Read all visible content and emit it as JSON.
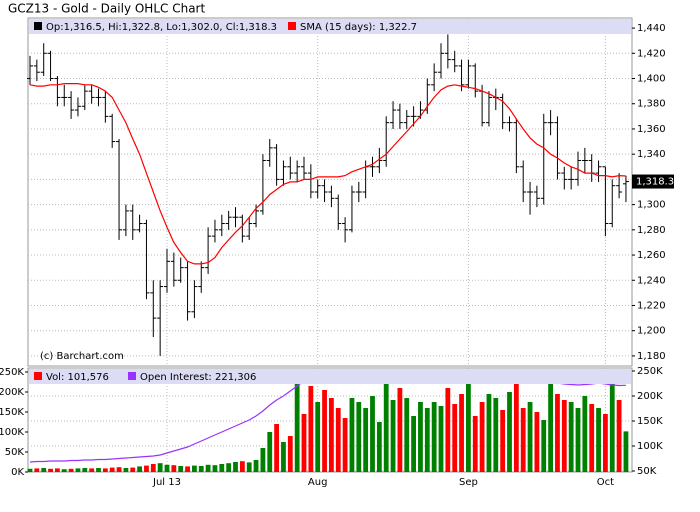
{
  "chart_data": [
    {
      "type": "ohlc",
      "title": "GCZ13 - Gold - Daily OHLC Chart",
      "legend": "Op:1,316.5, Hi:1,322.8, Lo:1,302.0, Cl:1,318.3",
      "color": "#000000",
      "watermark": "(c) Barchart.com",
      "grid": true,
      "ylim": [
        1172,
        1448
      ],
      "yticks": [
        {
          "value": 1180,
          "label": "1,180"
        },
        {
          "value": 1200,
          "label": "1,200"
        },
        {
          "value": 1220,
          "label": "1,220"
        },
        {
          "value": 1240,
          "label": "1,240"
        },
        {
          "value": 1260,
          "label": "1,260"
        },
        {
          "value": 1280,
          "label": "1,280"
        },
        {
          "value": 1300,
          "label": "1,300"
        },
        {
          "value": 1320,
          "label": "1,320"
        },
        {
          "value": 1340,
          "label": "1,340"
        },
        {
          "value": 1360,
          "label": "1,360"
        },
        {
          "value": 1380,
          "label": "1,380"
        },
        {
          "value": 1400,
          "label": "1,400"
        },
        {
          "value": 1420,
          "label": "1,420"
        },
        {
          "value": 1440,
          "label": "1,440"
        }
      ],
      "last": {
        "value": 1318.3,
        "label": "1,318.3"
      },
      "open": [
        1400,
        1410,
        1405,
        1420,
        1400,
        1385,
        1385,
        1375,
        1378,
        1390,
        1385,
        1385,
        1370,
        1350,
        1280,
        1295,
        1280,
        1285,
        1230,
        1210,
        1235,
        1255,
        1240,
        1250,
        1215,
        1235,
        1250,
        1275,
        1280,
        1285,
        1290,
        1290,
        1275,
        1285,
        1295,
        1335,
        1345,
        1320,
        1330,
        1325,
        1330,
        1325,
        1310,
        1315,
        1310,
        1305,
        1285,
        1280,
        1310,
        1310,
        1330,
        1330,
        1335,
        1365,
        1375,
        1365,
        1370,
        1370,
        1375,
        1395,
        1405,
        1420,
        1415,
        1410,
        1395,
        1410,
        1390,
        1365,
        1385,
        1385,
        1365,
        1365,
        1330,
        1310,
        1310,
        1305,
        1365,
        1365,
        1325,
        1320,
        1320,
        1335,
        1335,
        1325,
        1330,
        1285,
        1315,
        1316.5
      ],
      "high": [
        1418,
        1415,
        1428,
        1422,
        1402,
        1395,
        1390,
        1385,
        1395,
        1395,
        1392,
        1390,
        1372,
        1352,
        1300,
        1300,
        1292,
        1288,
        1240,
        1240,
        1265,
        1262,
        1258,
        1255,
        1240,
        1255,
        1282,
        1288,
        1292,
        1295,
        1298,
        1292,
        1290,
        1300,
        1340,
        1352,
        1348,
        1335,
        1338,
        1335,
        1338,
        1332,
        1320,
        1320,
        1315,
        1308,
        1290,
        1315,
        1318,
        1335,
        1338,
        1345,
        1370,
        1382,
        1380,
        1375,
        1378,
        1382,
        1400,
        1412,
        1428,
        1435,
        1422,
        1415,
        1415,
        1412,
        1395,
        1390,
        1392,
        1388,
        1370,
        1368,
        1335,
        1318,
        1315,
        1372,
        1375,
        1370,
        1330,
        1330,
        1342,
        1345,
        1340,
        1335,
        1330,
        1320,
        1325,
        1322.8
      ],
      "low": [
        1395,
        1398,
        1402,
        1398,
        1378,
        1378,
        1368,
        1370,
        1375,
        1380,
        1378,
        1365,
        1345,
        1272,
        1275,
        1272,
        1278,
        1225,
        1195,
        1180,
        1230,
        1235,
        1238,
        1208,
        1210,
        1230,
        1245,
        1270,
        1275,
        1280,
        1282,
        1270,
        1272,
        1282,
        1292,
        1330,
        1315,
        1315,
        1320,
        1318,
        1320,
        1305,
        1305,
        1302,
        1298,
        1280,
        1270,
        1278,
        1302,
        1305,
        1322,
        1325,
        1330,
        1360,
        1360,
        1360,
        1362,
        1368,
        1372,
        1390,
        1400,
        1408,
        1405,
        1390,
        1392,
        1385,
        1362,
        1362,
        1375,
        1360,
        1358,
        1325,
        1302,
        1292,
        1298,
        1300,
        1355,
        1320,
        1312,
        1312,
        1315,
        1325,
        1318,
        1318,
        1275,
        1282,
        1305,
        1302
      ],
      "close": [
        1410,
        1405,
        1420,
        1400,
        1385,
        1385,
        1375,
        1378,
        1390,
        1385,
        1385,
        1370,
        1350,
        1280,
        1295,
        1280,
        1285,
        1230,
        1210,
        1235,
        1255,
        1240,
        1250,
        1215,
        1235,
        1250,
        1275,
        1280,
        1285,
        1290,
        1290,
        1275,
        1285,
        1295,
        1335,
        1345,
        1320,
        1330,
        1325,
        1330,
        1325,
        1310,
        1315,
        1310,
        1305,
        1285,
        1280,
        1310,
        1310,
        1330,
        1330,
        1335,
        1365,
        1375,
        1365,
        1370,
        1370,
        1375,
        1395,
        1405,
        1420,
        1415,
        1410,
        1395,
        1410,
        1390,
        1365,
        1385,
        1385,
        1365,
        1365,
        1330,
        1310,
        1310,
        1305,
        1365,
        1365,
        1325,
        1320,
        1320,
        1335,
        1335,
        1325,
        1330,
        1285,
        1315,
        1310,
        1318.3
      ],
      "series": [
        {
          "name": "SMA (15 days): 1,322.7",
          "color": "#ff0000",
          "values": [
            1395,
            1394,
            1394,
            1395,
            1395,
            1396,
            1396,
            1396,
            1395,
            1395,
            1393,
            1390,
            1385,
            1375,
            1365,
            1352,
            1340,
            1325,
            1310,
            1295,
            1282,
            1270,
            1262,
            1255,
            1253,
            1253,
            1254,
            1258,
            1266,
            1272,
            1278,
            1283,
            1290,
            1297,
            1302,
            1308,
            1312,
            1316,
            1318,
            1318,
            1320,
            1320,
            1322,
            1322,
            1322,
            1322,
            1323,
            1326,
            1328,
            1330,
            1332,
            1336,
            1340,
            1346,
            1352,
            1358,
            1364,
            1370,
            1378,
            1385,
            1391,
            1394,
            1395,
            1394,
            1393,
            1392,
            1390,
            1388,
            1385,
            1382,
            1376,
            1368,
            1360,
            1353,
            1348,
            1345,
            1340,
            1337,
            1333,
            1330,
            1328,
            1325,
            1325,
            1323,
            1323,
            1322,
            1323,
            1322.7
          ]
        }
      ]
    },
    {
      "type": "bar",
      "up_color": "#008000",
      "down_color": "#ff0000",
      "categories": [
        null,
        null,
        null,
        null,
        null,
        null,
        null,
        null,
        null,
        null,
        null,
        null,
        null,
        null,
        null,
        null,
        null,
        null,
        null,
        null,
        "Jul 13",
        null,
        null,
        null,
        null,
        null,
        null,
        null,
        null,
        null,
        null,
        null,
        null,
        null,
        null,
        null,
        null,
        null,
        null,
        null,
        null,
        null,
        "Aug",
        null,
        null,
        null,
        null,
        null,
        null,
        null,
        null,
        null,
        null,
        null,
        null,
        null,
        null,
        null,
        null,
        null,
        null,
        null,
        null,
        null,
        "Sep",
        null,
        null,
        null,
        null,
        null,
        null,
        null,
        null,
        null,
        null,
        null,
        null,
        null,
        null,
        null,
        null,
        null,
        null,
        null,
        "Oct",
        null,
        null,
        null
      ],
      "ylim": [
        0,
        260000
      ],
      "yticks": [
        {
          "value": 0,
          "label": "0K"
        },
        {
          "value": 50000,
          "label": "50K"
        },
        {
          "value": 100000,
          "label": "100K"
        },
        {
          "value": 150000,
          "label": "150K"
        },
        {
          "value": 200000,
          "label": "200K"
        },
        {
          "value": 250000,
          "label": "250K"
        }
      ],
      "y2lim": [
        48000,
        256000
      ],
      "y2ticks": [
        {
          "value": 50000,
          "label": "50K"
        },
        {
          "value": 100000,
          "label": "100K"
        },
        {
          "value": 150000,
          "label": "150K"
        },
        {
          "value": 200000,
          "label": "200K"
        },
        {
          "value": 250000,
          "label": "250K"
        }
      ],
      "series": [
        {
          "name": "Vol: 101,576",
          "color": "#ff0000",
          "values": [
            8000,
            9000,
            10000,
            8000,
            9000,
            7000,
            8000,
            9000,
            10000,
            9000,
            10000,
            9000,
            11000,
            12000,
            10000,
            11000,
            14000,
            16000,
            20000,
            22000,
            18000,
            17000,
            15000,
            14000,
            16000,
            15000,
            18000,
            17000,
            20000,
            22000,
            25000,
            27000,
            24000,
            30000,
            60000,
            100000,
            120000,
            75000,
            90000,
            225000,
            145000,
            215000,
            175000,
            205000,
            185000,
            160000,
            135000,
            185000,
            175000,
            160000,
            190000,
            125000,
            230000,
            180000,
            210000,
            185000,
            140000,
            175000,
            160000,
            175000,
            165000,
            210000,
            170000,
            195000,
            220000,
            140000,
            175000,
            195000,
            185000,
            155000,
            200000,
            220000,
            160000,
            175000,
            150000,
            130000,
            250000,
            195000,
            180000,
            175000,
            160000,
            190000,
            170000,
            160000,
            145000,
            220000,
            180000,
            101576
          ]
        },
        {
          "name": "Open Interest: 221,306",
          "color": "#9933ff",
          "axis": "y2",
          "values": [
            68000,
            69000,
            69000,
            70000,
            70000,
            70000,
            71000,
            71000,
            72000,
            72000,
            73000,
            73000,
            74000,
            75000,
            76000,
            77000,
            78000,
            79000,
            80000,
            82000,
            86000,
            90000,
            94000,
            98000,
            104000,
            110000,
            116000,
            122000,
            128000,
            134000,
            140000,
            146000,
            152000,
            160000,
            170000,
            182000,
            192000,
            200000,
            210000,
            220000,
            230000,
            238000,
            244000,
            246000,
            244000,
            244000,
            243000,
            242000,
            242000,
            241000,
            241000,
            240000,
            240000,
            239000,
            238000,
            238000,
            237000,
            237000,
            236000,
            235000,
            234000,
            232000,
            230000,
            229000,
            228000,
            230000,
            231000,
            232000,
            234000,
            233000,
            232000,
            231000,
            230000,
            229000,
            228000,
            230000,
            229000,
            226000,
            224000,
            223000,
            222000,
            223000,
            224000,
            226000,
            224000,
            222000,
            221000,
            221306
          ]
        }
      ]
    }
  ]
}
